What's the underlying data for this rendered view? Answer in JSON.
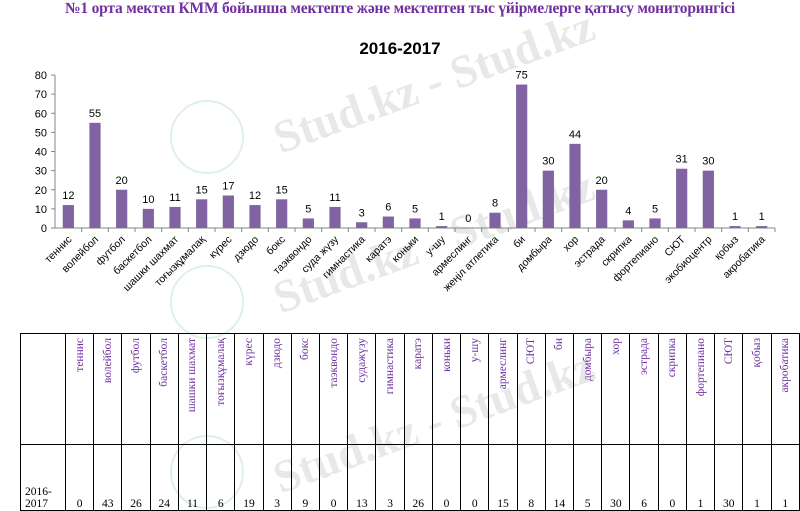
{
  "heading": {
    "text": "№1 орта мектеп КММ бойынша мектепте және мектептен тыс үйірмелерге қатысу мониторингісі",
    "color": "#7030a0"
  },
  "watermark": "Stud.kz - Stud.kz",
  "chart_data": {
    "type": "bar",
    "title": "2016-2017",
    "categories": [
      "теннис",
      "волейбол",
      "футбол",
      "баскетбол",
      "шашки шахмат",
      "тоғызқұмалақ",
      "күрес",
      "дзюдо",
      "бокс",
      "таэквондо",
      "суда жүзу",
      "гимнастика",
      "каратэ",
      "коньки",
      "у-шу",
      "армеслинг",
      "жеңіл атлетика",
      "би",
      "домбыра",
      "хор",
      "эстрада",
      "скрипка",
      "фортепиано",
      "СЮТ",
      "экобиоцентр",
      "қобыз",
      "акробатика"
    ],
    "values": [
      12,
      55,
      20,
      10,
      11,
      15,
      17,
      12,
      15,
      5,
      11,
      3,
      6,
      5,
      1,
      0,
      8,
      75,
      30,
      44,
      20,
      4,
      5,
      31,
      30,
      1,
      1
    ],
    "ylim": [
      0,
      80
    ],
    "yticks": [
      0,
      10,
      20,
      30,
      40,
      50,
      60,
      70,
      80
    ],
    "bar_color": "#8064a2",
    "grid": false
  },
  "table": {
    "year_label": "2016-2017",
    "headers": [
      "теннис",
      "волейбол",
      "футбол",
      "баскетбол",
      "шашки шахмат",
      "тоғызқұмалақ",
      "күрес",
      "дзюдо",
      "бокс",
      "таэквондо",
      "судажүзу",
      "гимнастика",
      "каратэ",
      "коньки",
      "у-шу",
      "армеслинг",
      "СЮТ",
      "би",
      "домбыра",
      "хор",
      "эстрада",
      "скрипка",
      "фортепиано",
      "СЮТ",
      "қобыз",
      "акробатика"
    ],
    "values": [
      "0",
      "43",
      "26",
      "24",
      "11",
      "6",
      "19",
      "3",
      "9",
      "0",
      "13",
      "3",
      "26",
      "0",
      "0",
      "15",
      "8",
      "14",
      "5",
      "30",
      "6",
      "0",
      "1",
      "30",
      "1",
      "1"
    ]
  }
}
